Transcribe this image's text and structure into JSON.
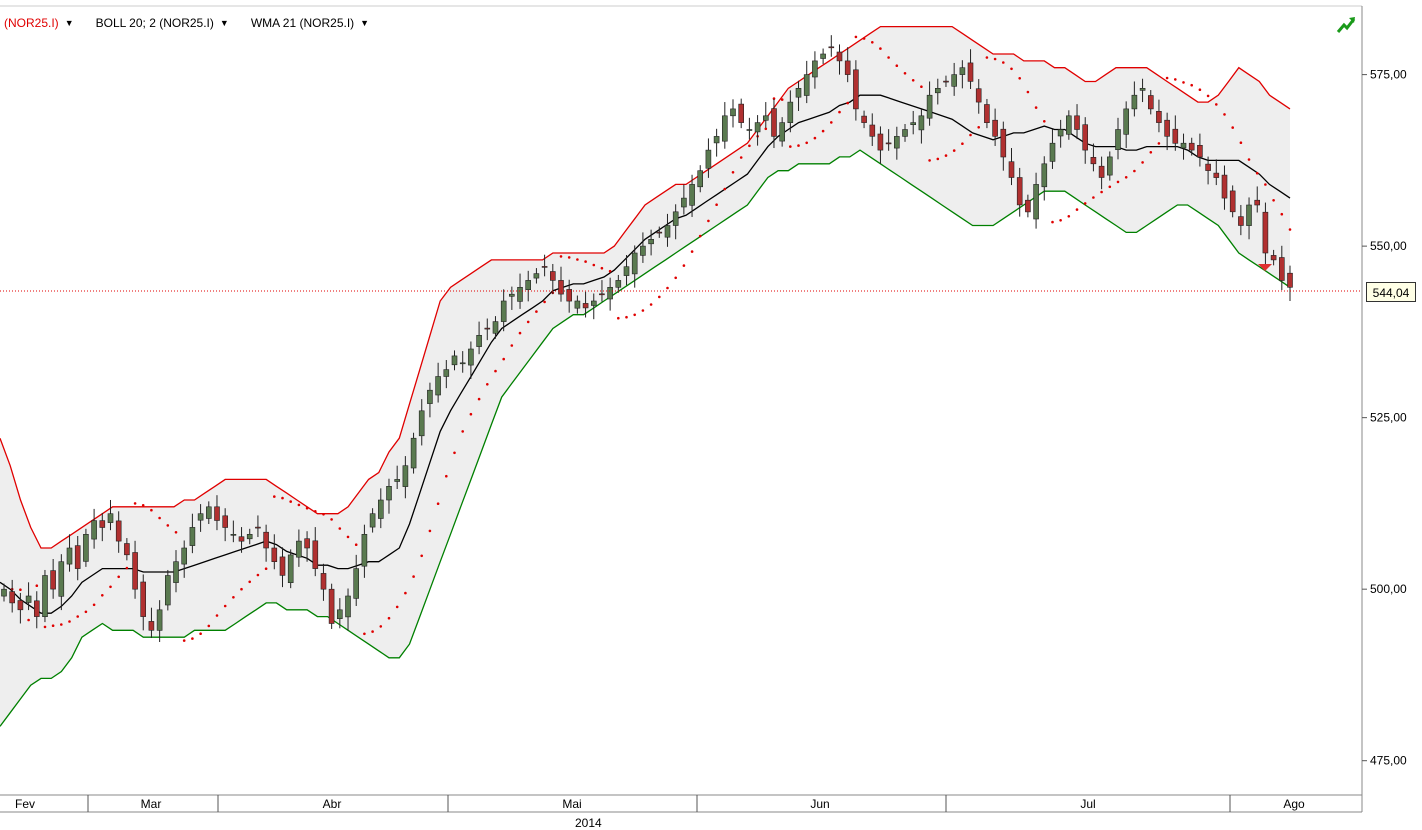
{
  "legend": {
    "symbol": "(NOR25.I)",
    "boll": "BOLL 20; 2 (NOR25.I)",
    "wma": "WMA 21 (NOR25.I)"
  },
  "last_price_label": "544,04",
  "year_label": "2014",
  "colors": {
    "upper_band": "#e00000",
    "lower_band": "#008000",
    "wma": "#000000",
    "sar": "#e00000",
    "candle_up": "#5a7a50",
    "candle_down": "#b03030",
    "band_fill": "#eeeeee"
  },
  "icons": [
    "trend-up-icon",
    "sell-signal-icon"
  ],
  "chart_data": {
    "type": "candlestick",
    "ylim": [
      470,
      585
    ],
    "yticks": [
      {
        "value": 475,
        "label": "475,00"
      },
      {
        "value": 500,
        "label": "500,00"
      },
      {
        "value": 525,
        "label": "525,00"
      },
      {
        "value": 550,
        "label": "550,00"
      },
      {
        "value": 575,
        "label": "575,00"
      }
    ],
    "months": [
      "Fev",
      "Mar",
      "Abr",
      "Mai",
      "Jun",
      "Jul",
      "Ago"
    ],
    "last_price": 544.04,
    "close": [
      500,
      498,
      497,
      499,
      496,
      502,
      500,
      504,
      506,
      503,
      508,
      510,
      509,
      511,
      507,
      505,
      500,
      496,
      494,
      497,
      502,
      504,
      506,
      509,
      511,
      512,
      510,
      509,
      508,
      507,
      508,
      509,
      506,
      504,
      502,
      505,
      507,
      506,
      503,
      500,
      495,
      497,
      499,
      503,
      508,
      511,
      513,
      515,
      516,
      518,
      522,
      526,
      529,
      531,
      532,
      534,
      533,
      535,
      537,
      538,
      539,
      542,
      543,
      544,
      545,
      546,
      547,
      545,
      543,
      542,
      542,
      541,
      542,
      543,
      544,
      545,
      547,
      549,
      550,
      551,
      552,
      553,
      555,
      557,
      559,
      561,
      564,
      566,
      569,
      570,
      568,
      567,
      568,
      569,
      566,
      568,
      571,
      573,
      575,
      577,
      578,
      579,
      577,
      575,
      570,
      568,
      566,
      564,
      565,
      566,
      567,
      568,
      569,
      572,
      573,
      574,
      575,
      576,
      574,
      571,
      568,
      566,
      563,
      560,
      556,
      555,
      559,
      562,
      565,
      567,
      569,
      567,
      564,
      562,
      560,
      563,
      567,
      570,
      572,
      573,
      570,
      568,
      566,
      565,
      565,
      564,
      563,
      561,
      560,
      557,
      555,
      553,
      556,
      556,
      549,
      548,
      545,
      544
    ],
    "upper": [
      522,
      518,
      513,
      509,
      506,
      506,
      507,
      508,
      509,
      510,
      511,
      512,
      512,
      512,
      512,
      512,
      512,
      512,
      513,
      513,
      514,
      515,
      516,
      516,
      516,
      516,
      516,
      515,
      514,
      513,
      512,
      511,
      511,
      511,
      512,
      514,
      516,
      517,
      520,
      522,
      527,
      532,
      537,
      542,
      544,
      545,
      546,
      547,
      548,
      548,
      548,
      548,
      548,
      548,
      549,
      549,
      549,
      549,
      549,
      549,
      550,
      552,
      554,
      556,
      557,
      558,
      559,
      559,
      560,
      561,
      562,
      563,
      564,
      565,
      567,
      569,
      571,
      573,
      574,
      575,
      576,
      577,
      578,
      579,
      580,
      581,
      582,
      582,
      582,
      582,
      582,
      582,
      582,
      582,
      581,
      580,
      579,
      578,
      578,
      578,
      577,
      577,
      577,
      576,
      576,
      575,
      574,
      574,
      575,
      576,
      576,
      576,
      576,
      575,
      574,
      573,
      572,
      571,
      571,
      572,
      574,
      576,
      575,
      574,
      572,
      571,
      570
    ],
    "lower": [
      480,
      482,
      484,
      486,
      487,
      487,
      488,
      490,
      493,
      494,
      495,
      494,
      494,
      494,
      493,
      493,
      493,
      493,
      493,
      494,
      494,
      494,
      494,
      495,
      496,
      497,
      498,
      498,
      497,
      497,
      497,
      496,
      496,
      495,
      494,
      493,
      492,
      491,
      490,
      490,
      492,
      496,
      500,
      504,
      508,
      512,
      516,
      520,
      524,
      528,
      530,
      532,
      534,
      536,
      538,
      539,
      540,
      540,
      541,
      542,
      543,
      544,
      545,
      546,
      547,
      548,
      549,
      550,
      551,
      552,
      553,
      554,
      555,
      556,
      558,
      560,
      561,
      561,
      562,
      562,
      562,
      562,
      563,
      563,
      564,
      563,
      562,
      561,
      560,
      559,
      558,
      557,
      556,
      555,
      554,
      553,
      553,
      553,
      554,
      555,
      556,
      557,
      558,
      558,
      558,
      557,
      556,
      555,
      554,
      553,
      552,
      552,
      553,
      554,
      555,
      556,
      556,
      555,
      554,
      553,
      551,
      549,
      548,
      547,
      546,
      545,
      544
    ]
  }
}
